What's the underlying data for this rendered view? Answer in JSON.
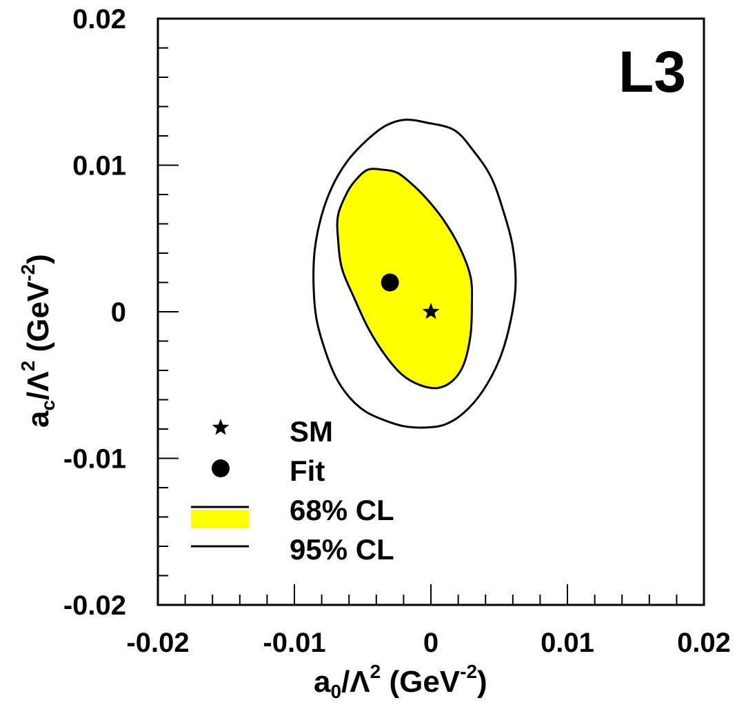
{
  "chart_data": {
    "type": "scatter",
    "xlabel": {
      "main": "a",
      "sub": "0",
      "slash": "/Λ",
      "sup": "2",
      "unit_open": " (GeV",
      "unit_sup": "-2",
      "unit_close": ")"
    },
    "ylabel": {
      "main": "a",
      "sub": "c",
      "slash": "/Λ",
      "sup": "2",
      "unit_open": " (GeV",
      "unit_sup": "-2",
      "unit_close": ")"
    },
    "xlim": [
      -0.02,
      0.02
    ],
    "ylim": [
      -0.02,
      0.02
    ],
    "x_ticks": [
      {
        "value": -0.02,
        "label": "-0.02"
      },
      {
        "value": -0.01,
        "label": "-0.01"
      },
      {
        "value": 0,
        "label": "0"
      },
      {
        "value": 0.01,
        "label": "0.01"
      },
      {
        "value": 0.02,
        "label": "0.02"
      }
    ],
    "y_ticks": [
      {
        "value": 0.02,
        "label": "0.02"
      },
      {
        "value": 0.01,
        "label": "0.01"
      },
      {
        "value": 0,
        "label": "0"
      },
      {
        "value": -0.01,
        "label": "-0.01"
      },
      {
        "value": -0.02,
        "label": "-0.02"
      }
    ],
    "grid": false,
    "legend_position": "bottom-left",
    "experiment_label": "L3",
    "points": [
      {
        "name": "SM",
        "marker": "star",
        "x": 0.0,
        "y": 0.0
      },
      {
        "name": "Fit",
        "marker": "circle",
        "x": -0.003,
        "y": 0.002
      }
    ],
    "contours": [
      {
        "name": "95% CL",
        "fill": "none",
        "stroke": "#000000",
        "x": [
          -0.0003,
          -0.0019,
          -0.0033,
          -0.0047,
          -0.0061,
          -0.0072,
          -0.008,
          -0.0085,
          -0.0086,
          -0.0084,
          -0.0078,
          -0.007,
          -0.006,
          -0.0048,
          -0.0034,
          -0.002,
          -0.0005,
          0.001,
          0.0024,
          0.0038,
          0.005,
          0.0058,
          0.0062,
          0.006,
          0.0053,
          0.0044,
          0.0031,
          0.0017
        ],
        "y": [
          0.0129,
          0.0131,
          0.0127,
          0.0117,
          0.0103,
          0.0086,
          0.0066,
          0.0043,
          0.002,
          -0.0004,
          -0.0025,
          -0.0044,
          -0.0058,
          -0.0068,
          -0.0074,
          -0.0078,
          -0.0079,
          -0.0077,
          -0.0069,
          -0.0054,
          -0.0033,
          -0.0008,
          0.0018,
          0.0044,
          0.0069,
          0.0092,
          0.011,
          0.0124
        ]
      },
      {
        "name": "68% CL",
        "fill": "#ffff00",
        "stroke": "#000000",
        "x": [
          -0.0046,
          -0.0054,
          -0.0061,
          -0.0068,
          -0.0068,
          -0.0065,
          -0.0056,
          -0.0046,
          -0.0034,
          -0.0021,
          -0.0008,
          0.0005,
          0.0016,
          0.0024,
          0.0029,
          0.003,
          0.0029,
          0.0021,
          0.0009,
          -0.0004,
          -0.0015,
          -0.0025,
          -0.0036
        ],
        "y": [
          0.0097,
          0.0091,
          0.0082,
          0.0066,
          0.0049,
          0.0029,
          0.0009,
          -0.0011,
          -0.0029,
          -0.0043,
          -0.005,
          -0.0052,
          -0.0047,
          -0.0036,
          -0.0016,
          0.0005,
          0.0024,
          0.0044,
          0.0063,
          0.0078,
          0.0088,
          0.0095,
          0.0097
        ]
      }
    ],
    "legend": [
      {
        "name": "SM",
        "symbol": "star"
      },
      {
        "name": "Fit",
        "symbol": "circle"
      },
      {
        "name": "68% CL",
        "symbol": "filled-box"
      },
      {
        "name": "95% CL",
        "symbol": "line"
      }
    ]
  }
}
